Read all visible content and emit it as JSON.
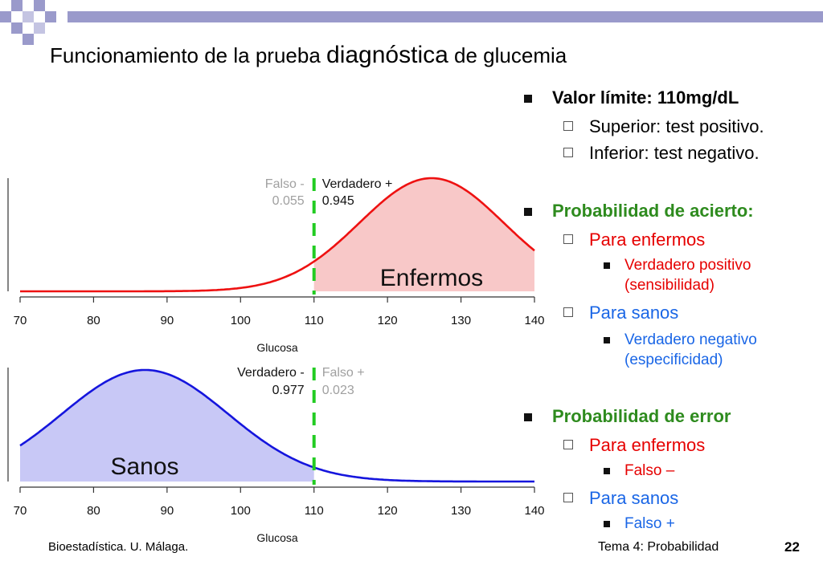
{
  "slide": {
    "title_part1": "Funcionamiento de la prueba ",
    "title_part2": "diagnóstica",
    "title_part3": " de glucemia"
  },
  "bullets": {
    "b1": "Valor límite: 110mg/dL",
    "b1_1": "Superior: test positivo.",
    "b1_2": "Inferior: test negativo.",
    "b2": "Probabilidad de acierto:",
    "b2_1": "Para enfermos",
    "b2_1_1": "Verdadero positivo (sensibilidad)",
    "b2_1_1a": "Verdadero positivo",
    "b2_1_1b": "(sensibilidad)",
    "b2_2": "Para sanos",
    "b2_2_1a": "Verdadero negativo",
    "b2_2_1b": "(especificidad)",
    "b3": "Probabilidad de error",
    "b3_1": "Para enfermos",
    "b3_1_1": "Falso –",
    "b3_2": "Para sanos",
    "b3_2_1": "Falso +"
  },
  "footer": {
    "left": "Bioestadística. U. Málaga.",
    "right": "Tema 4: Probabilidad",
    "page": "22"
  },
  "colors": {
    "deco_purple": "#9a9acb",
    "enfermos_line": "#ee1111",
    "enfermos_fill": "#f8c8c8",
    "sanos_line": "#1515dd",
    "sanos_fill": "#c8c8f6",
    "threshold": "#22cc22",
    "red_text": "#e60000",
    "blue_text": "#1a66e6",
    "green_text": "#2e8b1e"
  },
  "chart_data": [
    {
      "type": "area",
      "series_name": "Enfermos",
      "distribution": {
        "mean": 126,
        "sd": 9.8
      },
      "threshold": 110,
      "xlabel": "Glucosa",
      "xlim": [
        70,
        140
      ],
      "ticks": [
        70,
        80,
        90,
        100,
        110,
        120,
        130,
        140
      ],
      "shaded_region": [
        110,
        140
      ],
      "label_left": {
        "line1": "Falso -",
        "line2": "0.055"
      },
      "label_right": {
        "line1": "Verdadero +",
        "line2": "0.945"
      }
    },
    {
      "type": "area",
      "series_name": "Sanos",
      "distribution": {
        "mean": 87,
        "sd": 11.3
      },
      "threshold": 110,
      "xlabel": "Glucosa",
      "xlim": [
        70,
        140
      ],
      "ticks": [
        70,
        80,
        90,
        100,
        110,
        120,
        130,
        140
      ],
      "shaded_region": [
        70,
        110
      ],
      "label_left": {
        "line1": "Verdadero -",
        "line2": "0.977"
      },
      "label_right": {
        "line1": "Falso +",
        "line2": "0.023"
      }
    }
  ]
}
